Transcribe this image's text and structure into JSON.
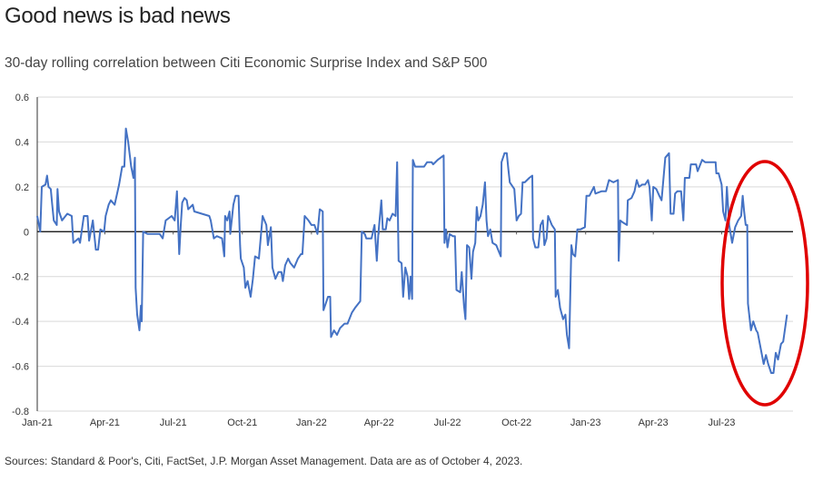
{
  "title": "Good news is bad news",
  "subtitle": "30-day rolling correlation between Citi Economic Surprise Index and S&P 500",
  "source": "Sources: Standard & Poor's, Citi, FactSet, J.P. Morgan Asset Management. Data are as of October 4, 2023.",
  "colors": {
    "line": "#4472C4",
    "highlight": "#E00000",
    "grid": "#D9D9D9",
    "zero_line": "#000000"
  },
  "chart_data": {
    "type": "line",
    "title": "Good news is bad news",
    "subtitle": "30-day rolling correlation between Citi Economic Surprise Index and S&P 500",
    "xlabel": "",
    "ylabel": "",
    "ylim": [
      -0.8,
      0.6
    ],
    "xlim": [
      "2021-01-01",
      "2023-10-04"
    ],
    "grid": true,
    "y_ticks": [
      "0.6",
      "0.4",
      "0.2",
      "0",
      "-0.2",
      "-0.4",
      "-0.6",
      "-0.8"
    ],
    "y_tick_values": [
      0.6,
      0.4,
      0.2,
      0,
      -0.2,
      -0.4,
      -0.6,
      -0.8
    ],
    "x_ticks": [
      "Jan-21",
      "Apr-21",
      "Jul-21",
      "Oct-21",
      "Jan-22",
      "Apr-22",
      "Jul-22",
      "Oct-22",
      "Jan-23",
      "Apr-23",
      "Jul-23"
    ],
    "x_tick_dates": [
      "2021-01-01",
      "2021-04-01",
      "2021-07-01",
      "2021-10-01",
      "2022-01-01",
      "2022-04-01",
      "2022-07-01",
      "2022-10-01",
      "2023-01-01",
      "2023-04-01",
      "2023-07-01"
    ],
    "annotation": {
      "type": "ellipse",
      "color": "#E00000",
      "covers": [
        "2023-07-01",
        "2023-10-04"
      ]
    },
    "series": [
      {
        "x": [
          "2021-01-01",
          "2021-01-05",
          "2021-01-07",
          "2021-01-12",
          "2021-01-14",
          "2021-01-16",
          "2021-01-19",
          "2021-01-21",
          "2021-01-23",
          "2021-01-27",
          "2021-01-28",
          "2021-01-30",
          "2021-02-03",
          "2021-02-10",
          "2021-02-16",
          "2021-02-18",
          "2021-02-25",
          "2021-02-27",
          "2021-03-04",
          "2021-03-09",
          "2021-03-11",
          "2021-03-16",
          "2021-03-20",
          "2021-03-23",
          "2021-03-26",
          "2021-03-31",
          "2021-04-02",
          "2021-04-06",
          "2021-04-09",
          "2021-04-14",
          "2021-04-20",
          "2021-04-24",
          "2021-04-27",
          "2021-04-29",
          "2021-05-02",
          "2021-05-06",
          "2021-05-09",
          "2021-05-11",
          "2021-05-12",
          "2021-05-14",
          "2021-05-17",
          "2021-05-19",
          "2021-05-20",
          "2021-05-22",
          "2021-05-28",
          "2021-06-05",
          "2021-06-13",
          "2021-06-17",
          "2021-06-21",
          "2021-06-29",
          "2021-07-03",
          "2021-07-06",
          "2021-07-09",
          "2021-07-11",
          "2021-07-13",
          "2021-07-16",
          "2021-07-19",
          "2021-07-21",
          "2021-07-27",
          "2021-07-29",
          "2021-08-08",
          "2021-08-18",
          "2021-08-20",
          "2021-08-24",
          "2021-08-28",
          "2021-09-04",
          "2021-09-07",
          "2021-09-08",
          "2021-09-11",
          "2021-09-14",
          "2021-09-15",
          "2021-09-19",
          "2021-09-22",
          "2021-09-26",
          "2021-09-28",
          "2021-09-29",
          "2021-10-03",
          "2021-10-05",
          "2021-10-08",
          "2021-10-12",
          "2021-10-15",
          "2021-10-18",
          "2021-10-23",
          "2021-10-28",
          "2021-11-02",
          "2021-11-04",
          "2021-11-08",
          "2021-11-10",
          "2021-11-14",
          "2021-11-18",
          "2021-11-22",
          "2021-11-24",
          "2021-11-27",
          "2021-12-01",
          "2021-12-04",
          "2021-12-09",
          "2021-12-14",
          "2021-12-18",
          "2021-12-20",
          "2021-12-23",
          "2021-12-28",
          "2022-01-01",
          "2022-01-05",
          "2022-01-09",
          "2022-01-12",
          "2022-01-16",
          "2022-01-17",
          "2022-01-23",
          "2022-01-26",
          "2022-01-27",
          "2022-01-31",
          "2022-02-04",
          "2022-02-08",
          "2022-02-14",
          "2022-02-18",
          "2022-02-24",
          "2022-02-28",
          "2022-03-07",
          "2022-03-09",
          "2022-03-13",
          "2022-03-15",
          "2022-03-22",
          "2022-03-26",
          "2022-03-29",
          "2022-03-31",
          "2022-04-04",
          "2022-04-06",
          "2022-04-10",
          "2022-04-12",
          "2022-04-15",
          "2022-04-19",
          "2022-04-23",
          "2022-04-25",
          "2022-04-27",
          "2022-05-01",
          "2022-05-03",
          "2022-05-06",
          "2022-05-09",
          "2022-05-11",
          "2022-05-13",
          "2022-05-15",
          "2022-05-16",
          "2022-05-19",
          "2022-05-31",
          "2022-06-04",
          "2022-06-10",
          "2022-06-12",
          "2022-06-18",
          "2022-06-26",
          "2022-06-27",
          "2022-06-29",
          "2022-07-01",
          "2022-07-04",
          "2022-07-08",
          "2022-07-11",
          "2022-07-13",
          "2022-07-18",
          "2022-07-20",
          "2022-07-23",
          "2022-07-25",
          "2022-07-27",
          "2022-07-30",
          "2022-08-02",
          "2022-08-04",
          "2022-08-07",
          "2022-08-09",
          "2022-08-11",
          "2022-08-14",
          "2022-08-17",
          "2022-08-20",
          "2022-08-22",
          "2022-08-24",
          "2022-08-27",
          "2022-08-30",
          "2022-09-04",
          "2022-09-10",
          "2022-09-11",
          "2022-09-15",
          "2022-09-18",
          "2022-09-20",
          "2022-09-22",
          "2022-09-28",
          "2022-10-01",
          "2022-10-04",
          "2022-10-07",
          "2022-10-09",
          "2022-10-12",
          "2022-10-18",
          "2022-10-22",
          "2022-10-23",
          "2022-10-26",
          "2022-10-30",
          "2022-11-02",
          "2022-11-05",
          "2022-11-07",
          "2022-11-10",
          "2022-11-12",
          "2022-11-17",
          "2022-11-21",
          "2022-11-22",
          "2022-11-25",
          "2022-11-28",
          "2022-12-02",
          "2022-12-05",
          "2022-12-07",
          "2022-12-10",
          "2022-12-13",
          "2022-12-15",
          "2022-12-18",
          "2022-12-21",
          "2022-12-25",
          "2022-12-31",
          "2023-01-02",
          "2023-01-06",
          "2023-01-12",
          "2023-01-14",
          "2023-01-22",
          "2023-01-28",
          "2023-02-01",
          "2023-02-07",
          "2023-02-13",
          "2023-02-14",
          "2023-02-16",
          "2023-02-20",
          "2023-02-25",
          "2023-02-26",
          "2023-03-03",
          "2023-03-07",
          "2023-03-10",
          "2023-03-13",
          "2023-03-17",
          "2023-03-21",
          "2023-03-25",
          "2023-03-27",
          "2023-03-30",
          "2023-04-01",
          "2023-04-05",
          "2023-04-09",
          "2023-04-12",
          "2023-04-17",
          "2023-04-22",
          "2023-04-24",
          "2023-04-28",
          "2023-04-30",
          "2023-05-03",
          "2023-05-08",
          "2023-05-11",
          "2023-05-13",
          "2023-05-19",
          "2023-05-21",
          "2023-05-28",
          "2023-05-30",
          "2023-06-05",
          "2023-06-09",
          "2023-06-15",
          "2023-06-23",
          "2023-06-24",
          "2023-06-27",
          "2023-07-01",
          "2023-07-03",
          "2023-07-06",
          "2023-07-08",
          "2023-07-11",
          "2023-07-15",
          "2023-07-19",
          "2023-07-23",
          "2023-07-27",
          "2023-07-29",
          "2023-07-31",
          "2023-08-02",
          "2023-08-04",
          "2023-08-05",
          "2023-08-09",
          "2023-08-12",
          "2023-08-16",
          "2023-08-18",
          "2023-08-22",
          "2023-08-26",
          "2023-08-29",
          "2023-09-01",
          "2023-09-05",
          "2023-09-08",
          "2023-09-11",
          "2023-09-14",
          "2023-09-18",
          "2023-09-21",
          "2023-09-26"
        ],
        "y": [
          0.07,
          0.0,
          0.2,
          0.21,
          0.25,
          0.2,
          0.19,
          0.12,
          0.05,
          0.03,
          0.19,
          0.09,
          0.05,
          0.08,
          0.07,
          -0.05,
          -0.03,
          -0.05,
          0.07,
          0.07,
          -0.04,
          0.05,
          -0.08,
          -0.08,
          0.01,
          0.0,
          0.07,
          0.12,
          0.14,
          0.12,
          0.21,
          0.29,
          0.29,
          0.46,
          0.4,
          0.29,
          0.24,
          0.33,
          -0.25,
          -0.37,
          -0.44,
          -0.33,
          -0.4,
          0.0,
          -0.01,
          -0.01,
          -0.01,
          -0.03,
          0.05,
          0.07,
          0.05,
          0.18,
          -0.1,
          0.03,
          0.13,
          0.15,
          0.14,
          0.1,
          0.12,
          0.09,
          0.08,
          0.07,
          0.05,
          -0.03,
          -0.02,
          -0.03,
          -0.11,
          0.07,
          0.05,
          0.09,
          -0.01,
          0.12,
          0.16,
          0.16,
          -0.06,
          -0.12,
          -0.16,
          -0.25,
          -0.22,
          -0.29,
          -0.21,
          -0.11,
          -0.12,
          0.07,
          0.03,
          -0.06,
          0.02,
          -0.16,
          -0.21,
          -0.18,
          -0.18,
          -0.22,
          -0.15,
          -0.12,
          -0.14,
          -0.16,
          -0.12,
          -0.1,
          -0.1,
          0.07,
          0.05,
          0.03,
          0.03,
          -0.01,
          0.1,
          0.09,
          -0.35,
          -0.29,
          -0.29,
          -0.47,
          -0.44,
          -0.46,
          -0.43,
          -0.41,
          -0.41,
          -0.36,
          -0.34,
          -0.31,
          0.0,
          -0.01,
          -0.03,
          -0.03,
          0.03,
          -0.13,
          -0.01,
          0.14,
          0.01,
          0.01,
          0.06,
          0.05,
          0.08,
          0.07,
          0.31,
          -0.13,
          -0.14,
          -0.29,
          -0.16,
          -0.2,
          -0.3,
          -0.2,
          -0.3,
          0.32,
          0.29,
          0.29,
          0.31,
          0.31,
          0.3,
          0.32,
          0.34,
          -0.05,
          0.01,
          -0.07,
          -0.01,
          -0.02,
          -0.02,
          -0.26,
          -0.27,
          -0.18,
          -0.33,
          -0.39,
          -0.06,
          -0.07,
          -0.21,
          -0.09,
          -0.05,
          0.11,
          0.05,
          0.07,
          0.12,
          0.22,
          0.05,
          -0.02,
          0.01,
          -0.05,
          -0.06,
          -0.11,
          0.31,
          0.35,
          0.35,
          0.28,
          0.22,
          0.19,
          0.05,
          0.07,
          0.08,
          0.22,
          0.22,
          0.24,
          0.25,
          -0.03,
          -0.07,
          -0.07,
          0.03,
          0.05,
          -0.06,
          -0.03,
          0.07,
          0.03,
          0.01,
          -0.29,
          -0.26,
          -0.34,
          -0.39,
          -0.37,
          -0.46,
          -0.52,
          -0.06,
          -0.1,
          -0.11,
          0.01,
          0.01,
          0.02,
          0.16,
          0.16,
          0.2,
          0.17,
          0.18,
          0.18,
          0.23,
          0.22,
          0.23,
          -0.13,
          0.05,
          0.04,
          0.03,
          0.14,
          0.15,
          0.18,
          0.23,
          0.2,
          0.21,
          0.21,
          0.23,
          0.2,
          0.05,
          0.2,
          0.19,
          0.16,
          0.14,
          0.33,
          0.35,
          0.08,
          0.08,
          0.17,
          0.18,
          0.18,
          0.05,
          0.24,
          0.24,
          0.3,
          0.3,
          0.27,
          0.32,
          0.31,
          0.31,
          0.31,
          0.26,
          0.26,
          0.21,
          0.09,
          0.05,
          0.2,
          0.03,
          -0.05,
          0.02,
          0.05,
          0.07,
          0.16,
          0.09,
          0.03,
          0.03,
          -0.32,
          -0.44,
          -0.4,
          -0.44,
          -0.45,
          -0.52,
          -0.59,
          -0.55,
          -0.59,
          -0.63,
          -0.63,
          -0.54,
          -0.57,
          -0.5,
          -0.49,
          -0.37
        ]
      }
    ]
  }
}
